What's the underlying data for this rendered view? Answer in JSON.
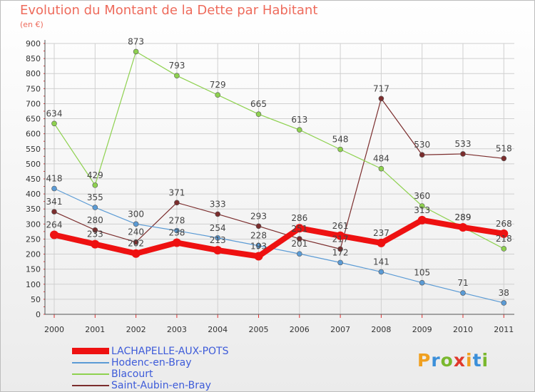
{
  "title": "Evolution du Montant de la Dette par Habitant",
  "subtitle": "(en €)",
  "brand": {
    "letters": [
      "P",
      "r",
      "o",
      "x",
      "i",
      "t",
      "i"
    ],
    "colors": [
      "#f0a020",
      "#3b8fd9",
      "#7ab82e",
      "#e0392b",
      "#f0a020",
      "#3b8fd9",
      "#7ab82e"
    ]
  },
  "chart_data": {
    "type": "line",
    "title": "Evolution du Montant de la Dette par Habitant",
    "ylabel": "(en €)",
    "xlabel": "",
    "ylim": [
      0,
      900
    ],
    "y_ticks": [
      "0",
      "50",
      "100",
      "150",
      "200",
      "250",
      "300",
      "350",
      "400",
      "450",
      "500",
      "550",
      "600",
      "650",
      "700",
      "750",
      "800",
      "850",
      "900"
    ],
    "categories": [
      "2000",
      "2001",
      "2002",
      "2003",
      "2004",
      "2005",
      "2006",
      "2007",
      "2008",
      "2009",
      "2010",
      "2011"
    ],
    "grid": true,
    "legend_position": "bottom-left",
    "series": [
      {
        "name": "Saint-Aubin-en-Bray",
        "color": "#7b2d2d",
        "values": [
          341,
          280,
          240,
          371,
          333,
          293,
          251,
          217,
          717,
          530,
          533,
          518
        ],
        "labels": [
          "341",
          "280",
          "240",
          "371",
          "333",
          "293",
          "251",
          "217",
          "717",
          "530",
          "533",
          "518"
        ]
      },
      {
        "name": "Blacourt",
        "color": "#8ed14f",
        "values": [
          634,
          429,
          873,
          793,
          729,
          665,
          613,
          548,
          484,
          360,
          289,
          218
        ],
        "labels": [
          "634",
          "429",
          "873",
          "793",
          "729",
          "665",
          "613",
          "548",
          "484",
          "360",
          "289",
          "218"
        ]
      },
      {
        "name": "Hodenc-en-Bray",
        "color": "#5b9bd5",
        "values": [
          418,
          355,
          300,
          278,
          254,
          228,
          201,
          172,
          141,
          105,
          71,
          38
        ],
        "labels": [
          "418",
          "355",
          "300",
          "278",
          "254",
          "228",
          "201",
          "172",
          "141",
          "105",
          "71",
          "38"
        ]
      },
      {
        "name": "LACHAPELLE-AUX-POTS",
        "color": "#ee1111",
        "values": [
          264,
          233,
          202,
          238,
          213,
          193,
          286,
          261,
          237,
          313,
          289,
          268
        ],
        "labels": [
          "264",
          "233",
          "202",
          "238",
          "213",
          "193",
          "286",
          "261",
          "237",
          "313",
          "289",
          "268"
        ]
      }
    ]
  },
  "legend": [
    {
      "label": "LACHAPELLE-AUX-POTS",
      "color": "#ee1111"
    },
    {
      "label": "Hodenc-en-Bray",
      "color": "#5b9bd5"
    },
    {
      "label": "Blacourt",
      "color": "#8ed14f"
    },
    {
      "label": "Saint-Aubin-en-Bray",
      "color": "#7b2d2d"
    }
  ]
}
